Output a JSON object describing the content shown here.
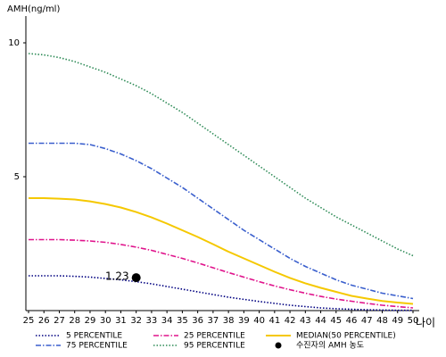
{
  "chart_data": {
    "type": "line",
    "ylabel": "AMH(ng/ml)",
    "xlabel": "나이",
    "x": [
      25,
      26,
      27,
      28,
      29,
      30,
      31,
      32,
      33,
      34,
      35,
      36,
      37,
      38,
      39,
      40,
      41,
      42,
      43,
      44,
      45,
      46,
      47,
      48,
      49,
      50
    ],
    "xlim": [
      25,
      50
    ],
    "ylim": [
      0,
      11
    ],
    "yticks": [
      5,
      10
    ],
    "series": [
      {
        "name": "5 PERCENTILE",
        "color": "#000080",
        "dash": "dotted",
        "values": [
          1.3,
          1.3,
          1.3,
          1.28,
          1.25,
          1.2,
          1.15,
          1.08,
          1.0,
          0.9,
          0.8,
          0.7,
          0.6,
          0.5,
          0.42,
          0.34,
          0.27,
          0.2,
          0.15,
          0.1,
          0.07,
          0.05,
          0.03,
          0.02,
          0.01,
          0.01
        ]
      },
      {
        "name": "25 PERCENTILE",
        "color": "#e0148c",
        "dash": "dashdot",
        "values": [
          2.65,
          2.65,
          2.65,
          2.63,
          2.6,
          2.55,
          2.47,
          2.37,
          2.25,
          2.1,
          1.95,
          1.78,
          1.6,
          1.42,
          1.25,
          1.08,
          0.92,
          0.78,
          0.65,
          0.53,
          0.43,
          0.35,
          0.27,
          0.2,
          0.15,
          0.1
        ]
      },
      {
        "name": "MEDIAN(50 PERCENTILE)",
        "color": "#f5c800",
        "dash": "solid",
        "values": [
          4.2,
          4.2,
          4.18,
          4.15,
          4.08,
          3.98,
          3.85,
          3.68,
          3.48,
          3.25,
          3.0,
          2.75,
          2.48,
          2.2,
          1.95,
          1.7,
          1.45,
          1.22,
          1.02,
          0.85,
          0.7,
          0.55,
          0.45,
          0.36,
          0.3,
          0.25
        ]
      },
      {
        "name": "75 PERCENTILE",
        "color": "#3a5fcd",
        "dash": "dashdot",
        "values": [
          6.25,
          6.25,
          6.25,
          6.25,
          6.2,
          6.05,
          5.85,
          5.6,
          5.3,
          4.95,
          4.6,
          4.2,
          3.8,
          3.4,
          3.0,
          2.65,
          2.3,
          1.95,
          1.65,
          1.4,
          1.15,
          0.95,
          0.8,
          0.65,
          0.55,
          0.45
        ]
      },
      {
        "name": "95 PERCENTILE",
        "color": "#2e8b57",
        "dash": "dotted",
        "values": [
          9.6,
          9.55,
          9.45,
          9.3,
          9.1,
          8.9,
          8.65,
          8.4,
          8.1,
          7.75,
          7.4,
          7.0,
          6.6,
          6.2,
          5.8,
          5.4,
          5.0,
          4.6,
          4.2,
          3.85,
          3.5,
          3.2,
          2.9,
          2.6,
          2.3,
          2.05
        ]
      }
    ],
    "point": {
      "name": "수진자의 AMH 농도",
      "x": 32,
      "y": 1.23,
      "color": "#000000"
    },
    "legend_order": [
      0,
      1,
      2,
      3,
      4
    ]
  }
}
